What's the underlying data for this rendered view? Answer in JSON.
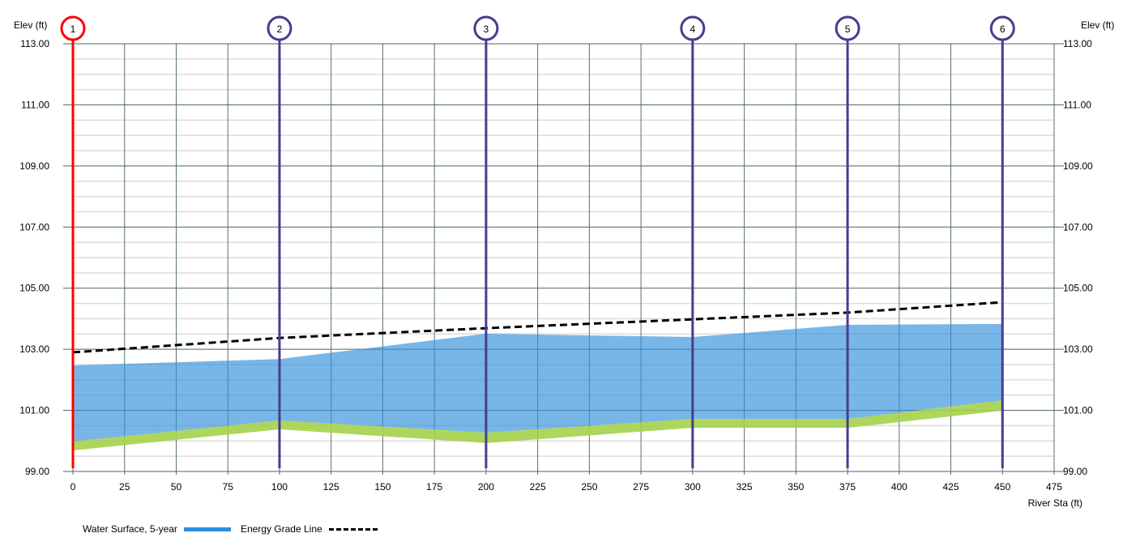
{
  "chart_data": {
    "type": "area",
    "xlabel": "River Sta (ft)",
    "ylabel_left": "Elev (ft)",
    "ylabel_right": "Elev (ft)",
    "xlim": [
      0,
      475
    ],
    "ylim": [
      99,
      113
    ],
    "x_ticks": [
      0,
      25,
      50,
      75,
      100,
      125,
      150,
      175,
      200,
      225,
      250,
      275,
      300,
      325,
      350,
      375,
      400,
      425,
      450,
      475
    ],
    "y_ticks": [
      "99.00",
      "101.00",
      "103.00",
      "105.00",
      "107.00",
      "109.00",
      "111.00",
      "113.00"
    ],
    "grid": true,
    "cross_sections": [
      {
        "label": "1",
        "station": 0,
        "color": "#ff0000"
      },
      {
        "label": "2",
        "station": 100,
        "color": "#4b3b8f"
      },
      {
        "label": "3",
        "station": 200,
        "color": "#4b3b8f"
      },
      {
        "label": "4",
        "station": 300,
        "color": "#4b3b8f"
      },
      {
        "label": "5",
        "station": 375,
        "color": "#4b3b8f"
      },
      {
        "label": "6",
        "station": 450,
        "color": "#4b3b8f"
      }
    ],
    "stations": [
      0,
      100,
      200,
      300,
      375,
      450
    ],
    "series": [
      {
        "name": "Water Surface, 5-year",
        "color": "#2f8fdc",
        "values": [
          102.47,
          102.68,
          103.51,
          103.4,
          103.8,
          103.83
        ]
      },
      {
        "name": "Energy Grade Line",
        "color": "#000000",
        "style": "dashed",
        "values": [
          102.9,
          103.37,
          103.69,
          103.98,
          104.2,
          104.54
        ]
      }
    ],
    "channel_bed_top": [
      99.98,
      100.67,
      100.27,
      100.72,
      100.72,
      101.33
    ],
    "channel_bed_bottom": [
      99.69,
      100.38,
      99.93,
      100.43,
      100.43,
      100.99
    ],
    "bed_color": "#a5d24a",
    "legend_placement": "bottom-left"
  }
}
